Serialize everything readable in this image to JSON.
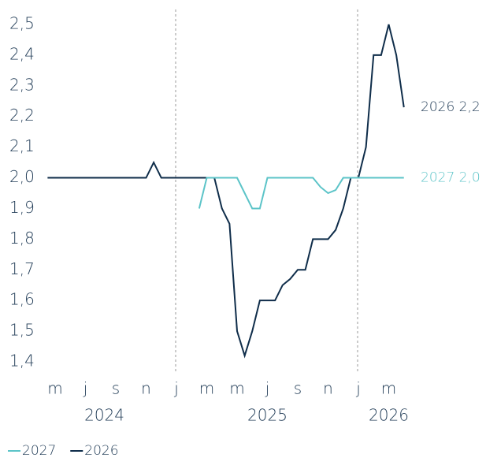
{
  "chart_data": {
    "type": "line",
    "categories": [
      null,
      "m",
      null,
      null,
      null,
      "j",
      null,
      null,
      null,
      "s",
      null,
      null,
      null,
      "n",
      null,
      null,
      null,
      "j",
      null,
      null,
      null,
      "m",
      null,
      null,
      null,
      "m",
      null,
      null,
      null,
      "j",
      null,
      null,
      null,
      "s",
      null,
      null,
      null,
      "n",
      null,
      null,
      null,
      "j",
      null,
      null,
      null,
      "m",
      null,
      null
    ],
    "x_groups": [
      "2024",
      "2025",
      "2026"
    ],
    "series": [
      {
        "name": "2027",
        "color": "#5cc4c8",
        "values": [
          null,
          null,
          null,
          null,
          null,
          null,
          null,
          null,
          null,
          null,
          null,
          null,
          null,
          null,
          null,
          null,
          null,
          null,
          null,
          null,
          1.9,
          2.0,
          2.0,
          2.0,
          2.0,
          2.0,
          1.95,
          1.9,
          1.9,
          2.0,
          2.0,
          2.0,
          2.0,
          2.0,
          2.0,
          2.0,
          1.97,
          1.95,
          1.96,
          2.0,
          2.0,
          2.0,
          2.0,
          2.0,
          2.0,
          2.0,
          2.0,
          2.0
        ],
        "annotation": "2027 2,0"
      },
      {
        "name": "2026",
        "color": "#0f2d4a",
        "values": [
          2.0,
          2.0,
          2.0,
          2.0,
          2.0,
          2.0,
          2.0,
          2.0,
          2.0,
          2.0,
          2.0,
          2.0,
          2.0,
          2.0,
          2.05,
          2.0,
          2.0,
          2.0,
          2.0,
          2.0,
          2.0,
          2.0,
          2.0,
          1.9,
          1.85,
          1.5,
          1.42,
          1.5,
          1.6,
          1.6,
          1.6,
          1.65,
          1.67,
          1.7,
          1.7,
          1.8,
          1.8,
          1.8,
          1.83,
          1.9,
          2.0,
          2.0,
          2.1,
          2.4,
          2.4,
          2.5,
          2.4,
          2.23
        ],
        "annotation": "2026 2,2"
      }
    ],
    "ylim": [
      1.4,
      2.5
    ],
    "yticks": [
      {
        "value": 1.4,
        "label": "1,4"
      },
      {
        "value": 1.5,
        "label": "1,5"
      },
      {
        "value": 1.6,
        "label": "1,6"
      },
      {
        "value": 1.7,
        "label": "1,7"
      },
      {
        "value": 1.8,
        "label": "1,8"
      },
      {
        "value": 1.9,
        "label": "1,9"
      },
      {
        "value": 2.0,
        "label": "2,0"
      },
      {
        "value": 2.1,
        "label": "2,1"
      },
      {
        "value": 2.2,
        "label": "2,2"
      },
      {
        "value": 2.3,
        "label": "2,3"
      },
      {
        "value": 2.4,
        "label": "2,4"
      },
      {
        "value": 2.5,
        "label": "2,5"
      }
    ],
    "grid": false
  }
}
